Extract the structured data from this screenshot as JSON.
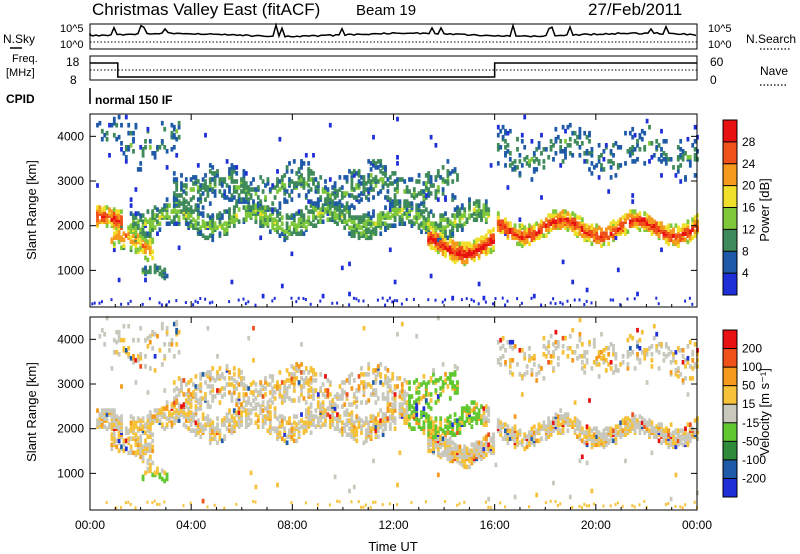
{
  "header": {
    "title": "Christmas Valley East (fitACF)",
    "beam": "Beam 19",
    "date": "27/Feb/2011"
  },
  "status_panels": {
    "nsky_label": "N.Sky",
    "nsky_top_tick": "10^5",
    "nsky_bottom_tick": "10^0",
    "nsearch_label": "N.Search",
    "nsearch_top_tick": "10^5",
    "nsearch_bottom_tick": "10^0",
    "freq_label_line1": "Freq.",
    "freq_label_line2": "[MHz]",
    "freq_ticks": [
      "18",
      "8"
    ],
    "nave_label": "Nave",
    "nave_ticks": [
      "60",
      "0"
    ],
    "cpid_label": "CPID",
    "cpid_value": "normal 150 IF"
  },
  "chart_data": [
    {
      "type": "heatmap",
      "name": "power",
      "title": "",
      "xlabel": "",
      "ylabel": "Slant Range [km]",
      "x_ticks": [
        "00:00",
        "04:00",
        "08:00",
        "12:00",
        "16:00",
        "20:00",
        "00:00"
      ],
      "xlim_hours": [
        0,
        24
      ],
      "y_ticks": [
        1000,
        2000,
        3000,
        4000
      ],
      "ylim": [
        180,
        4500
      ],
      "colorbar": {
        "label": "Power [dB]",
        "ticks": [
          4,
          8,
          12,
          16,
          20,
          24,
          28
        ],
        "range": [
          0,
          30
        ],
        "colors": [
          "#1f2fd8",
          "#1f5aa8",
          "#3f8a5a",
          "#7fc83c",
          "#f0e02c",
          "#f59a1c",
          "#f0501a",
          "#e81010"
        ]
      }
    },
    {
      "type": "heatmap",
      "name": "velocity",
      "title": "",
      "xlabel": "Time UT",
      "ylabel": "Slant Range [km]",
      "x_ticks": [
        "00:00",
        "04:00",
        "08:00",
        "12:00",
        "16:00",
        "20:00",
        "00:00"
      ],
      "xlim_hours": [
        0,
        24
      ],
      "y_ticks": [
        1000,
        2000,
        3000,
        4000
      ],
      "ylim": [
        180,
        4500
      ],
      "colorbar": {
        "label": "Velocity [m s⁻¹]",
        "ticks": [
          200,
          100,
          50,
          15,
          -15,
          -50,
          -100,
          -200
        ],
        "range": [
          -250,
          250
        ],
        "colors": [
          "#1f2fd8",
          "#1f5aa8",
          "#2f8a3a",
          "#62c832",
          "#c8c8bc",
          "#f5c23a",
          "#f59a1c",
          "#f0501a",
          "#e81010"
        ]
      }
    }
  ]
}
